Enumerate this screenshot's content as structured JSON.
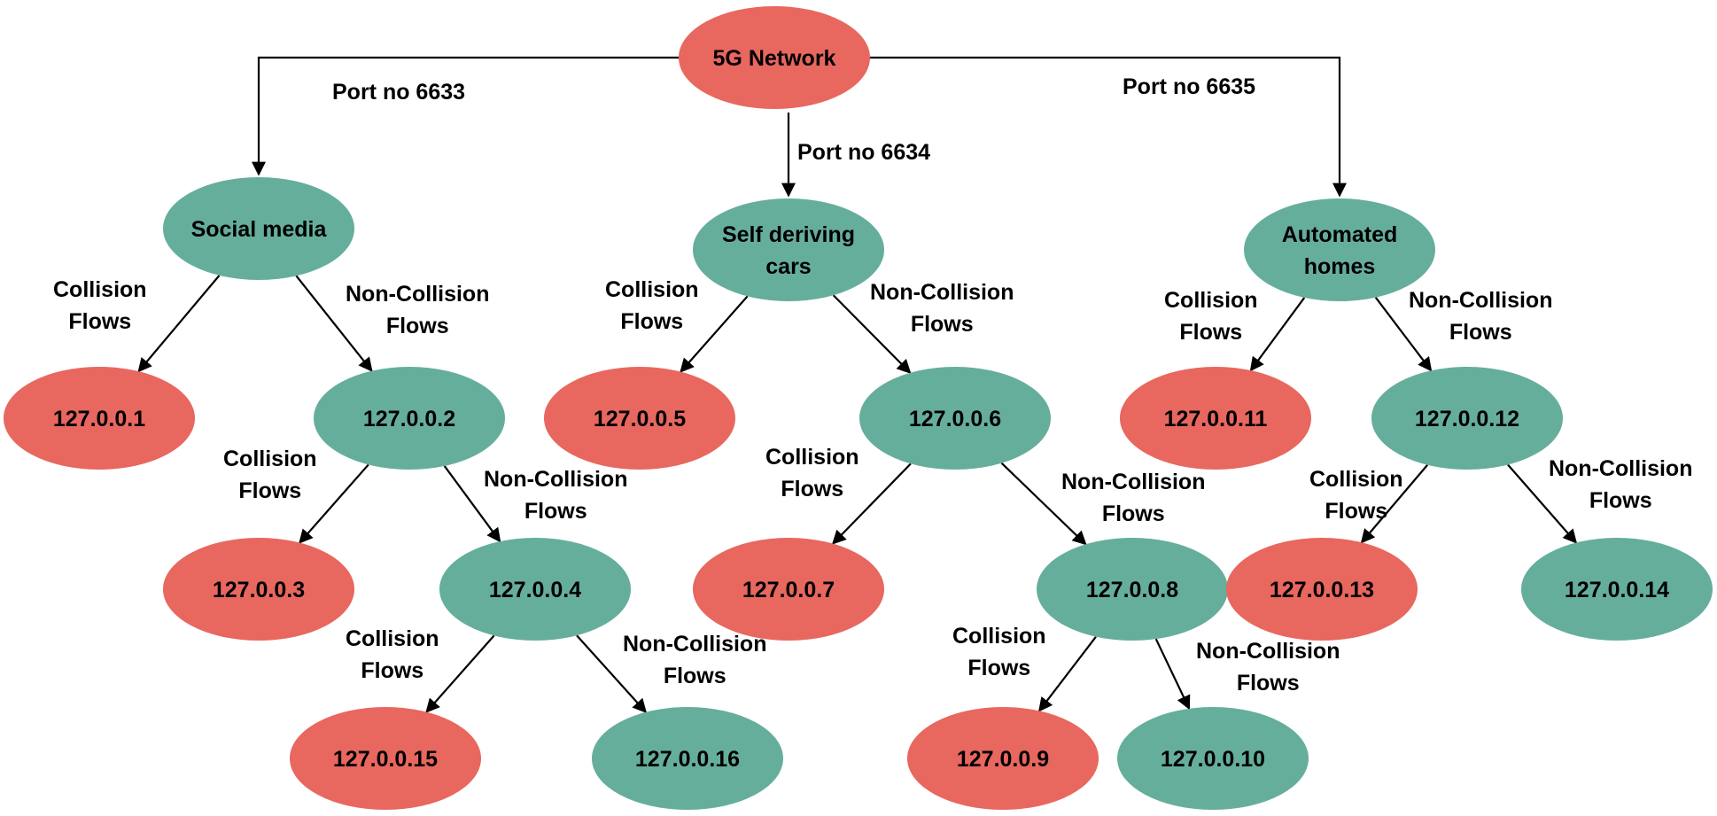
{
  "colors": {
    "red": "#E8675F",
    "green": "#66AE9C",
    "line": "#000000"
  },
  "nodes": {
    "root": {
      "label": "5G Network",
      "color": "red"
    },
    "social": {
      "label": "Social media",
      "color": "green"
    },
    "cars": {
      "label": "Self deriving\ncars",
      "color": "green"
    },
    "homes": {
      "label": "Automated\nhomes",
      "color": "green"
    },
    "n1": {
      "label": "127.0.0.1",
      "color": "red"
    },
    "n2": {
      "label": "127.0.0.2",
      "color": "green"
    },
    "n3": {
      "label": "127.0.0.3",
      "color": "red"
    },
    "n4": {
      "label": "127.0.0.4",
      "color": "green"
    },
    "n15": {
      "label": "127.0.0.15",
      "color": "red"
    },
    "n16": {
      "label": "127.0.0.16",
      "color": "green"
    },
    "n5": {
      "label": "127.0.0.5",
      "color": "red"
    },
    "n6": {
      "label": "127.0.0.6",
      "color": "green"
    },
    "n7": {
      "label": "127.0.0.7",
      "color": "red"
    },
    "n8": {
      "label": "127.0.0.8",
      "color": "green"
    },
    "n9": {
      "label": "127.0.0.9",
      "color": "red"
    },
    "n10": {
      "label": "127.0.0.10",
      "color": "green"
    },
    "n11": {
      "label": "127.0.0.11",
      "color": "red"
    },
    "n12": {
      "label": "127.0.0.12",
      "color": "green"
    },
    "n13": {
      "label": "127.0.0.13",
      "color": "red"
    },
    "n14": {
      "label": "127.0.0.14",
      "color": "green"
    }
  },
  "edges": [
    {
      "from": "root",
      "to": "social",
      "label": "Port no 6633"
    },
    {
      "from": "root",
      "to": "cars",
      "label": "Port no 6634"
    },
    {
      "from": "root",
      "to": "homes",
      "label": "Port no 6635"
    },
    {
      "from": "social",
      "to": "n1",
      "label": "Collision\nFlows"
    },
    {
      "from": "social",
      "to": "n2",
      "label": "Non-Collision\nFlows"
    },
    {
      "from": "n2",
      "to": "n3",
      "label": "Collision\nFlows"
    },
    {
      "from": "n2",
      "to": "n4",
      "label": "Non-Collision\nFlows"
    },
    {
      "from": "n4",
      "to": "n15",
      "label": "Collision\nFlows"
    },
    {
      "from": "n4",
      "to": "n16",
      "label": "Non-Collision\nFlows"
    },
    {
      "from": "cars",
      "to": "n5",
      "label": "Collision\nFlows"
    },
    {
      "from": "cars",
      "to": "n6",
      "label": "Non-Collision\nFlows"
    },
    {
      "from": "n6",
      "to": "n7",
      "label": "Collision\nFlows"
    },
    {
      "from": "n6",
      "to": "n8",
      "label": "Non-Collision\nFlows"
    },
    {
      "from": "n8",
      "to": "n9",
      "label": "Collision\nFlows"
    },
    {
      "from": "n8",
      "to": "n10",
      "label": "Non-Collision\nFlows"
    },
    {
      "from": "homes",
      "to": "n11",
      "label": "Collision\nFlows"
    },
    {
      "from": "homes",
      "to": "n12",
      "label": "Non-Collision\nFlows"
    },
    {
      "from": "n12",
      "to": "n13",
      "label": "Collision\nFlows"
    },
    {
      "from": "n12",
      "to": "n14",
      "label": "Non-Collision\nFlows"
    }
  ]
}
